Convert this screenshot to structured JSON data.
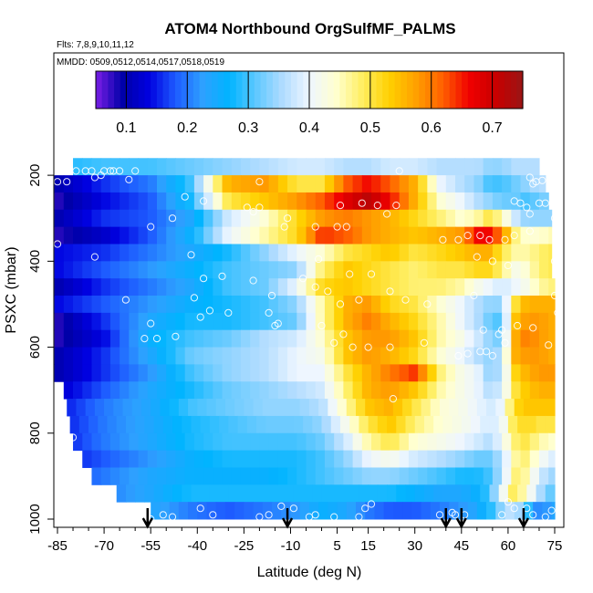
{
  "chart_data": {
    "type": "heatmap",
    "title": "ATOM4 Northbound OrgSulfMF_PALMS",
    "flights_label": "Flts: 7,8,9,10,11,12",
    "dates_label": "MMDD: 0509,0512,0514,0517,0518,0519",
    "xlabel": "Latitude (deg N)",
    "ylabel": "PSXC (mbar)",
    "xlim": [
      -87,
      85
    ],
    "ylim": [
      1020,
      100
    ],
    "y_reversed": true,
    "x_ticks": [
      -85,
      -70,
      -55,
      -40,
      -25,
      -10,
      5,
      15,
      30,
      45,
      60,
      75
    ],
    "x_tick_labels": [
      "-85",
      "-70",
      "-55",
      "-40",
      "-25",
      "-10",
      "5",
      "15",
      "30",
      "45",
      "60",
      "75"
    ],
    "y_ticks": [
      200,
      400,
      600,
      800,
      1000
    ],
    "y_tick_labels": [
      "200",
      "400",
      "600",
      "800",
      "1000"
    ],
    "colorbar": {
      "range": [
        0.05,
        0.75
      ],
      "ticks": [
        0.1,
        0.2,
        0.3,
        0.4,
        0.5,
        0.6,
        0.7
      ],
      "tick_labels": [
        "0.1",
        "0.2",
        "0.3",
        "0.4",
        "0.5",
        "0.6",
        "0.7"
      ],
      "colors": [
        "#7a1fe6",
        "#0000a8",
        "#0000e0",
        "#1e5cff",
        "#2ea0ff",
        "#00b4ff",
        "#5ec8ff",
        "#b0dcff",
        "#eef6ff",
        "#ffffd0",
        "#ffee60",
        "#ffd000",
        "#ffa000",
        "#ff6000",
        "#f00000",
        "#c80000",
        "#9a1515"
      ]
    },
    "levels": [
      180,
      220,
      260,
      300,
      340,
      380,
      420,
      460,
      500,
      540,
      580,
      620,
      660,
      700,
      740,
      780,
      820,
      860,
      900,
      940,
      980
    ],
    "row_extents": [
      [
        -80,
        70
      ],
      [
        -86,
        72
      ],
      [
        -86,
        73
      ],
      [
        -86,
        74
      ],
      [
        -86,
        74
      ],
      [
        -86,
        74
      ],
      [
        -86,
        74
      ],
      [
        -86,
        75
      ],
      [
        -86,
        75
      ],
      [
        -86,
        75
      ],
      [
        -86,
        75
      ],
      [
        -86,
        75
      ],
      [
        -86,
        75
      ],
      [
        -83,
        75
      ],
      [
        -82,
        75
      ],
      [
        -81,
        75
      ],
      [
        -80,
        75
      ],
      [
        -77,
        75
      ],
      [
        -74,
        75
      ],
      [
        -66,
        75
      ],
      [
        -55,
        75
      ]
    ],
    "profile_lat": [
      -85,
      -70,
      -55,
      -42,
      -30,
      -18,
      -8,
      0,
      8,
      15,
      22,
      30,
      38,
      45,
      50,
      54,
      58,
      62,
      66,
      70,
      75
    ],
    "values": [
      [
        0.28,
        0.3,
        0.3,
        0.32,
        0.34,
        0.36,
        0.38,
        0.38,
        0.36,
        0.36,
        0.38,
        0.38,
        0.36,
        0.36,
        0.36,
        0.34,
        0.34,
        0.36,
        0.36,
        0.36,
        0.36
      ],
      [
        0.1,
        0.16,
        0.2,
        0.3,
        0.56,
        0.58,
        0.5,
        0.5,
        0.62,
        0.66,
        0.62,
        0.56,
        0.4,
        0.36,
        0.34,
        0.3,
        0.3,
        0.32,
        0.34,
        0.36,
        0.36
      ],
      [
        0.08,
        0.14,
        0.18,
        0.28,
        0.5,
        0.54,
        0.58,
        0.62,
        0.68,
        0.72,
        0.66,
        0.56,
        0.44,
        0.4,
        0.36,
        0.34,
        0.32,
        0.32,
        0.3,
        0.32,
        0.34
      ],
      [
        0.1,
        0.16,
        0.18,
        0.24,
        0.38,
        0.44,
        0.52,
        0.58,
        0.6,
        0.58,
        0.56,
        0.52,
        0.48,
        0.44,
        0.46,
        0.5,
        0.46,
        0.38,
        0.34,
        0.34,
        0.34
      ],
      [
        0.08,
        0.12,
        0.18,
        0.26,
        0.4,
        0.46,
        0.52,
        0.64,
        0.62,
        0.58,
        0.56,
        0.54,
        0.56,
        0.58,
        0.66,
        0.66,
        0.6,
        0.48,
        0.44,
        0.44,
        0.46
      ],
      [
        0.14,
        0.16,
        0.2,
        0.24,
        0.28,
        0.34,
        0.4,
        0.44,
        0.5,
        0.52,
        0.54,
        0.5,
        0.52,
        0.54,
        0.56,
        0.56,
        0.5,
        0.46,
        0.46,
        0.48,
        0.5
      ],
      [
        0.14,
        0.18,
        0.22,
        0.26,
        0.3,
        0.32,
        0.34,
        0.48,
        0.54,
        0.52,
        0.5,
        0.48,
        0.5,
        0.5,
        0.52,
        0.52,
        0.48,
        0.42,
        0.44,
        0.48,
        0.5
      ],
      [
        0.1,
        0.16,
        0.2,
        0.24,
        0.3,
        0.32,
        0.4,
        0.52,
        0.54,
        0.52,
        0.5,
        0.48,
        0.48,
        0.46,
        0.42,
        0.4,
        0.38,
        0.4,
        0.42,
        0.46,
        0.48
      ],
      [
        0.14,
        0.18,
        0.22,
        0.26,
        0.28,
        0.3,
        0.34,
        0.46,
        0.56,
        0.58,
        0.52,
        0.5,
        0.44,
        0.4,
        0.36,
        0.34,
        0.34,
        0.5,
        0.56,
        0.56,
        0.56
      ],
      [
        0.08,
        0.16,
        0.24,
        0.28,
        0.28,
        0.3,
        0.32,
        0.46,
        0.56,
        0.6,
        0.56,
        0.52,
        0.46,
        0.4,
        0.36,
        0.32,
        0.3,
        0.54,
        0.58,
        0.58,
        0.56
      ],
      [
        0.08,
        0.14,
        0.26,
        0.3,
        0.32,
        0.36,
        0.38,
        0.44,
        0.54,
        0.58,
        0.58,
        0.54,
        0.46,
        0.42,
        0.38,
        0.34,
        0.32,
        0.56,
        0.6,
        0.58,
        0.56
      ],
      [
        0.1,
        0.16,
        0.24,
        0.32,
        0.34,
        0.36,
        0.4,
        0.42,
        0.54,
        0.58,
        0.56,
        0.52,
        0.44,
        0.4,
        0.36,
        0.34,
        0.36,
        0.56,
        0.58,
        0.58,
        0.56
      ],
      [
        0.1,
        0.16,
        0.22,
        0.3,
        0.34,
        0.36,
        0.4,
        0.4,
        0.5,
        0.56,
        0.6,
        0.64,
        0.48,
        0.42,
        0.4,
        0.34,
        0.36,
        0.52,
        0.56,
        0.58,
        0.58
      ],
      [
        0.12,
        0.18,
        0.24,
        0.28,
        0.32,
        0.34,
        0.36,
        0.38,
        0.48,
        0.56,
        0.58,
        0.54,
        0.46,
        0.42,
        0.4,
        0.36,
        0.38,
        0.5,
        0.54,
        0.56,
        0.56
      ],
      [
        0.14,
        0.2,
        0.24,
        0.3,
        0.32,
        0.34,
        0.34,
        0.36,
        0.46,
        0.54,
        0.56,
        0.5,
        0.44,
        0.42,
        0.4,
        0.38,
        0.4,
        0.52,
        0.54,
        0.54,
        0.54
      ],
      [
        0.14,
        0.2,
        0.24,
        0.28,
        0.3,
        0.32,
        0.32,
        0.34,
        0.42,
        0.5,
        0.54,
        0.48,
        0.44,
        0.42,
        0.4,
        0.38,
        0.4,
        0.5,
        0.52,
        0.5,
        0.5
      ],
      [
        0.14,
        0.2,
        0.24,
        0.28,
        0.3,
        0.3,
        0.3,
        0.32,
        0.38,
        0.46,
        0.5,
        0.44,
        0.42,
        0.4,
        0.38,
        0.36,
        0.4,
        0.48,
        0.5,
        0.46,
        0.44
      ],
      [
        0.14,
        0.18,
        0.22,
        0.26,
        0.28,
        0.28,
        0.28,
        0.3,
        0.34,
        0.4,
        0.42,
        0.38,
        0.36,
        0.34,
        0.32,
        0.32,
        0.36,
        0.46,
        0.48,
        0.42,
        0.38
      ],
      [
        0.16,
        0.2,
        0.24,
        0.26,
        0.26,
        0.26,
        0.28,
        0.3,
        0.32,
        0.34,
        0.34,
        0.32,
        0.3,
        0.28,
        0.28,
        0.3,
        0.36,
        0.48,
        0.46,
        0.38,
        0.34
      ],
      [
        0.16,
        0.2,
        0.24,
        0.28,
        0.28,
        0.28,
        0.28,
        0.28,
        0.28,
        0.28,
        0.28,
        0.26,
        0.24,
        0.24,
        0.26,
        0.3,
        0.4,
        0.5,
        0.44,
        0.36,
        0.3
      ],
      [
        0.2,
        0.22,
        0.24,
        0.2,
        0.18,
        0.2,
        0.22,
        0.26,
        0.24,
        0.2,
        0.18,
        0.18,
        0.2,
        0.22,
        0.24,
        0.28,
        0.34,
        0.38,
        0.3,
        0.2,
        0.24
      ]
    ],
    "sample_points": [
      [
        -79,
        190
      ],
      [
        -76,
        190
      ],
      [
        -74,
        190
      ],
      [
        -70,
        190
      ],
      [
        -68,
        190
      ],
      [
        -67,
        190
      ],
      [
        -65,
        190
      ],
      [
        -60,
        190
      ],
      [
        -85,
        215
      ],
      [
        -82,
        215
      ],
      [
        -73,
        205
      ],
      [
        -71,
        200
      ],
      [
        -62,
        210
      ],
      [
        -20,
        215
      ],
      [
        25,
        190
      ],
      [
        67,
        205
      ],
      [
        69,
        215
      ],
      [
        71,
        212
      ],
      [
        68,
        220
      ],
      [
        -44,
        250
      ],
      [
        -38,
        260
      ],
      [
        -48,
        300
      ],
      [
        -24,
        275
      ],
      [
        -22,
        285
      ],
      [
        -20,
        275
      ],
      [
        6,
        270
      ],
      [
        13,
        265
      ],
      [
        18,
        270
      ],
      [
        21,
        290
      ],
      [
        24,
        270
      ],
      [
        62,
        260
      ],
      [
        64,
        265
      ],
      [
        66,
        275
      ],
      [
        67,
        290
      ],
      [
        70,
        265
      ],
      [
        72,
        265
      ],
      [
        75,
        300
      ],
      [
        -12,
        320
      ],
      [
        -11,
        300
      ],
      [
        -2,
        320
      ],
      [
        5,
        320
      ],
      [
        8,
        320
      ],
      [
        39,
        350
      ],
      [
        44,
        350
      ],
      [
        47,
        340
      ],
      [
        51,
        340
      ],
      [
        54,
        350
      ],
      [
        59,
        350
      ],
      [
        62,
        340
      ],
      [
        67,
        330
      ],
      [
        -86,
        340
      ],
      [
        -85,
        360
      ],
      [
        -73,
        390
      ],
      [
        -55,
        320
      ],
      [
        -42,
        385
      ],
      [
        -1,
        395
      ],
      [
        9,
        430
      ],
      [
        16,
        430
      ],
      [
        50,
        390
      ],
      [
        55,
        400
      ],
      [
        60,
        410
      ],
      [
        75,
        400
      ],
      [
        -63,
        490
      ],
      [
        -38,
        440
      ],
      [
        -32,
        435
      ],
      [
        -22,
        445
      ],
      [
        -16,
        480
      ],
      [
        -6,
        440
      ],
      [
        -2,
        460
      ],
      [
        2,
        470
      ],
      [
        6,
        500
      ],
      [
        12,
        490
      ],
      [
        22,
        470
      ],
      [
        27,
        490
      ],
      [
        34,
        500
      ],
      [
        49,
        480
      ],
      [
        75,
        480
      ],
      [
        76,
        520
      ],
      [
        -55,
        545
      ],
      [
        -57,
        580
      ],
      [
        -53,
        580
      ],
      [
        -47,
        575
      ],
      [
        -41,
        485
      ],
      [
        -39,
        530
      ],
      [
        -36,
        515
      ],
      [
        -30,
        520
      ],
      [
        -17,
        520
      ],
      [
        -15,
        550
      ],
      [
        -14,
        545
      ],
      [
        0,
        550
      ],
      [
        4,
        590
      ],
      [
        7,
        570
      ],
      [
        10,
        600
      ],
      [
        15,
        600
      ],
      [
        22,
        600
      ],
      [
        33,
        590
      ],
      [
        52,
        560
      ],
      [
        57,
        570
      ],
      [
        58,
        560
      ],
      [
        59,
        590
      ],
      [
        63,
        550
      ],
      [
        68,
        555
      ],
      [
        73,
        595
      ],
      [
        51,
        610
      ],
      [
        55,
        620
      ],
      [
        44,
        620
      ],
      [
        47,
        615
      ],
      [
        53,
        610
      ],
      [
        -90,
        610
      ],
      [
        23,
        720
      ],
      [
        -80,
        810
      ],
      [
        -55,
        1000
      ],
      [
        -51,
        990
      ],
      [
        -48,
        995
      ],
      [
        -39,
        975
      ],
      [
        -35,
        990
      ],
      [
        -20,
        995
      ],
      [
        -17,
        990
      ],
      [
        -13,
        970
      ],
      [
        -9,
        975
      ],
      [
        -4,
        995
      ],
      [
        -2,
        990
      ],
      [
        4,
        995
      ],
      [
        12,
        995
      ],
      [
        14,
        975
      ],
      [
        16,
        965
      ],
      [
        38,
        990
      ],
      [
        42,
        985
      ],
      [
        43,
        990
      ],
      [
        46,
        990
      ],
      [
        58,
        990
      ],
      [
        60,
        960
      ],
      [
        62,
        975
      ],
      [
        66,
        975
      ],
      [
        68,
        990
      ],
      [
        72,
        995
      ],
      [
        74,
        980
      ],
      [
        79,
        990
      ],
      [
        82,
        985
      ],
      [
        89,
        990
      ]
    ],
    "flight_turn_markers": [
      -56,
      -11,
      40,
      45,
      65
    ],
    "grid": false,
    "legend": "colorbar top"
  }
}
